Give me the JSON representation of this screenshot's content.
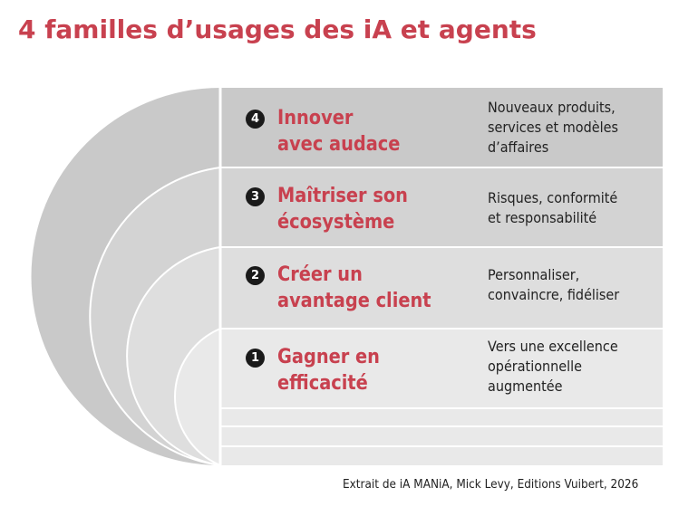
{
  "title": "4 familles d’usages des iA et agents",
  "families": [
    {
      "number": "4",
      "label_line1": "Innover",
      "label_line2": "avec audace",
      "desc_lines": [
        "Nouveaux produits,",
        "services et modèles",
        "d’affaires"
      ]
    },
    {
      "number": "3",
      "label_line1": "Maîtriser son",
      "label_line2": "écosystème",
      "desc_lines": [
        "Risques, conformité",
        "et responsabilité"
      ]
    },
    {
      "number": "2",
      "label_line1": "Créer un",
      "label_line2": "avantage client",
      "desc_lines": [
        "Personnaliser,",
        "convaincre, fidéliser"
      ]
    },
    {
      "number": "1",
      "label_line1": "Gagner en",
      "label_line2": "efficacité",
      "desc_lines": [
        "Vers une excellence",
        "opérationnelle",
        "augmentée"
      ]
    }
  ],
  "source": "Extrait de iA MANiA, Mick Levy, Editions Vuibert, 2026",
  "colors": {
    "accent_red": "#c8414f",
    "band_4": "#c9c9c9",
    "band_3": "#d3d3d3",
    "band_2": "#dedede",
    "band_1": "#e9e9e9",
    "badge": "#1a1a1a"
  }
}
